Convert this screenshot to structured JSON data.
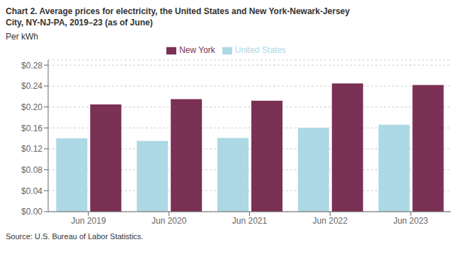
{
  "chart_data": {
    "type": "bar",
    "title": "Chart 2. Average prices for electricity, the United States and New York-Newark-Jersey\nCity, NY-NJ-PA, 2019–23 (as of June)",
    "ylabel": "Per kWh",
    "annotations": [
      "Source: U.S. Bureau of Labor Statistics."
    ],
    "categories": [
      "Jun 2019",
      "Jun 2020",
      "Jun 2021",
      "Jun 2022",
      "Jun 2023"
    ],
    "series": [
      {
        "name": "United States",
        "color": "#add8e6",
        "values": [
          0.14,
          0.135,
          0.141,
          0.16,
          0.166
        ]
      },
      {
        "name": "New York",
        "color": "#7b3055",
        "values": [
          0.205,
          0.215,
          0.212,
          0.245,
          0.242
        ]
      }
    ],
    "ylim": [
      0,
      0.29
    ],
    "yticks": [
      {
        "value": 0.0,
        "label": "$0.00"
      },
      {
        "value": 0.04,
        "label": "$0.04"
      },
      {
        "value": 0.08,
        "label": "$0.08"
      },
      {
        "value": 0.12,
        "label": "$0.12"
      },
      {
        "value": 0.16,
        "label": "$0.16"
      },
      {
        "value": 0.2,
        "label": "$0.20"
      },
      {
        "value": 0.24,
        "label": "$0.24"
      },
      {
        "value": 0.28,
        "label": "$0.28"
      }
    ],
    "grid": true,
    "legend": "top"
  }
}
